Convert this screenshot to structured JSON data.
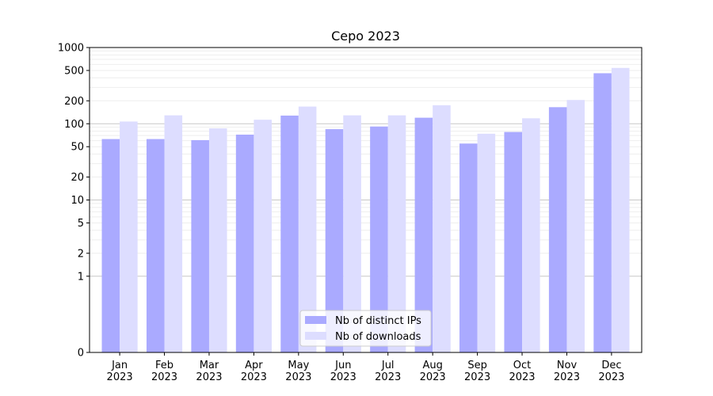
{
  "chart_data": {
    "type": "bar",
    "title": "Cepo 2023",
    "xlabel": "",
    "ylabel": "",
    "yscale": "symlog",
    "ylim": [
      0,
      1000
    ],
    "ytick_labels": [
      "0",
      "1",
      "2",
      "5",
      "10",
      "20",
      "50",
      "100",
      "200",
      "500",
      "1000"
    ],
    "categories": [
      "Jan\n2023",
      "Feb\n2023",
      "Mar\n2023",
      "Apr\n2023",
      "May\n2023",
      "Jun\n2023",
      "Jul\n2023",
      "Aug\n2023",
      "Sep\n2023",
      "Oct\n2023",
      "Nov\n2023",
      "Dec\n2023"
    ],
    "series": [
      {
        "name": "Nb of distinct IPs",
        "color": "#aaaaff",
        "values": [
          63,
          63,
          61,
          72,
          128,
          85,
          92,
          120,
          55,
          78,
          165,
          460
        ]
      },
      {
        "name": "Nb of downloads",
        "color": "#ddddff",
        "values": [
          107,
          129,
          87,
          113,
          168,
          129,
          129,
          175,
          74,
          118,
          205,
          540
        ]
      }
    ],
    "legend_position": "bottom-center",
    "grid": true
  }
}
